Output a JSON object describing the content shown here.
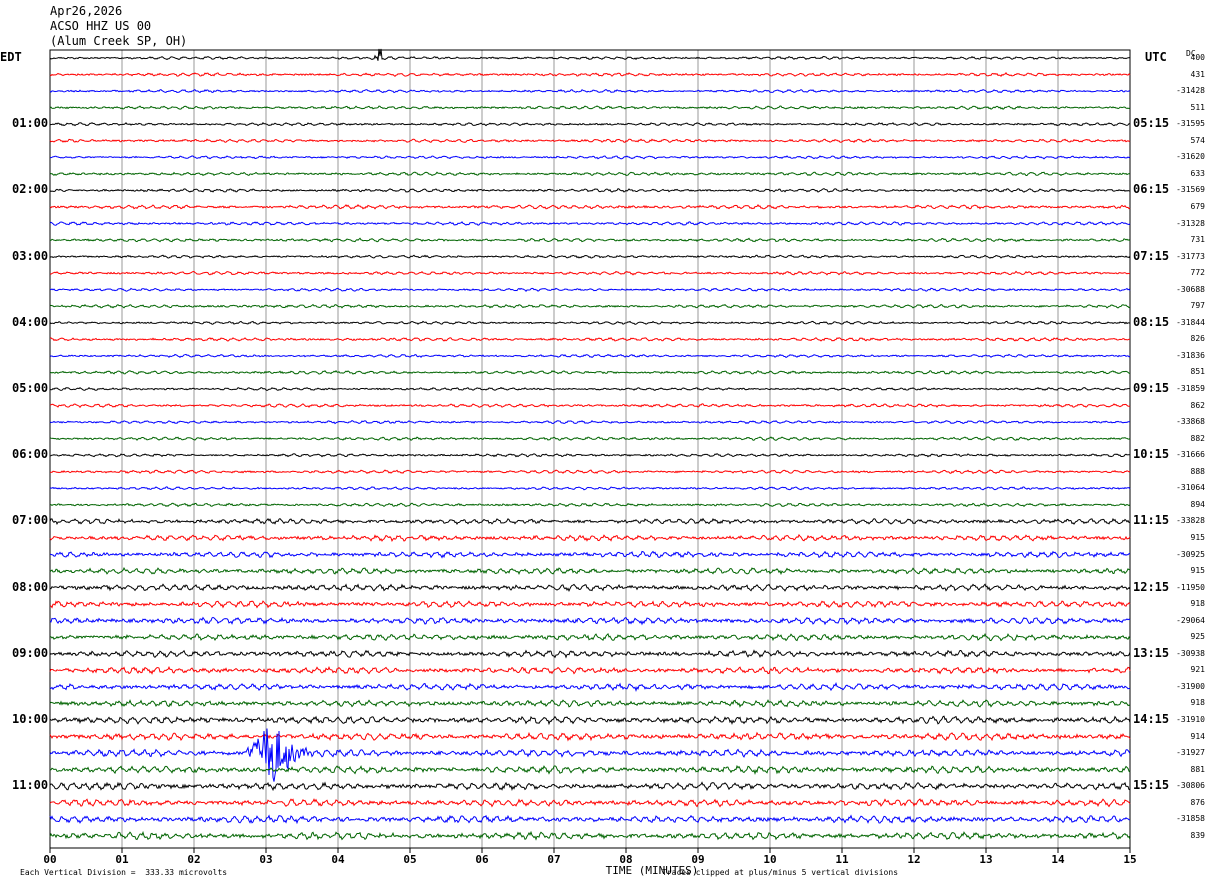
{
  "header": {
    "date": "Apr26,2026",
    "station": "ACSO HHZ US 00",
    "location": "(Alum Creek SP, OH)"
  },
  "left_zone": "EDT",
  "right_zone": "UTC",
  "dc_header": "DC",
  "footer": {
    "scale": "Each Vertical Division =  333.33 microvolts",
    "clip": "Traces clipped at plus/minus 5 vertical divisions"
  },
  "colors": {
    "line_cycle": [
      "#000000",
      "#ff0000",
      "#0000ff",
      "#006400"
    ],
    "grid": "#000000"
  },
  "chart_data": {
    "type": "line",
    "title": "ACSO HHZ US 00 (Alum Creek SP, OH) Apr26,2026",
    "xlabel": "TIME (MINUTES)",
    "xlim": [
      0,
      15
    ],
    "x_ticks": [
      "00",
      "01",
      "02",
      "03",
      "04",
      "05",
      "06",
      "07",
      "08",
      "09",
      "10",
      "11",
      "12",
      "13",
      "14",
      "15"
    ],
    "rows": 48,
    "minutes_per_row": 15,
    "left_hour_labels": [
      "01:00",
      "02:00",
      "03:00",
      "04:00",
      "05:00",
      "06:00",
      "07:00",
      "08:00",
      "09:00",
      "10:00",
      "11:00"
    ],
    "right_hour_labels": [
      "05:15",
      "06:15",
      "07:15",
      "08:15",
      "09:15",
      "10:15",
      "11:15",
      "12:15",
      "13:15",
      "14:15",
      "15:15"
    ],
    "hour_label_rows": [
      4,
      8,
      12,
      16,
      20,
      24,
      28,
      32,
      36,
      40,
      44
    ],
    "dc_offsets": [
      "400",
      "431",
      "-31428",
      "511",
      "-31595",
      "574",
      "-31620",
      "633",
      "-31569",
      "679",
      "-31328",
      "731",
      "-31773",
      "772",
      "-30688",
      "797",
      "-31844",
      "826",
      "-31836",
      "851",
      "-31859",
      "862",
      "-33868",
      "882",
      "-31666",
      "888",
      "-31064",
      "894",
      "-33828",
      "915",
      "-30925",
      "915",
      "-11950",
      "918",
      "-29064",
      "925",
      "-30938",
      "921",
      "-31900",
      "918",
      "-31910",
      "914",
      "-31927",
      "881",
      "-30806",
      "876",
      "-31858",
      "839"
    ],
    "noise_amplitude_by_row": [
      0.22,
      0.25,
      0.22,
      0.25,
      0.22,
      0.25,
      0.22,
      0.25,
      0.25,
      0.3,
      0.25,
      0.25,
      0.22,
      0.25,
      0.22,
      0.25,
      0.22,
      0.25,
      0.22,
      0.25,
      0.22,
      0.25,
      0.22,
      0.25,
      0.22,
      0.25,
      0.22,
      0.25,
      0.4,
      0.45,
      0.45,
      0.45,
      0.5,
      0.5,
      0.5,
      0.5,
      0.5,
      0.5,
      0.5,
      0.5,
      0.55,
      0.55,
      0.55,
      0.55,
      0.55,
      0.55,
      0.55,
      0.55
    ],
    "events": [
      {
        "row": 42,
        "minute_start": 2.7,
        "minute_peak": 3.1,
        "minute_end": 4.0,
        "peak_divisions": 5
      },
      {
        "row": 0,
        "minute_start": 4.5,
        "minute_peak": 4.52,
        "minute_end": 4.6,
        "peak_divisions": 2
      }
    ],
    "clip_divisions": 5,
    "grid": true
  }
}
